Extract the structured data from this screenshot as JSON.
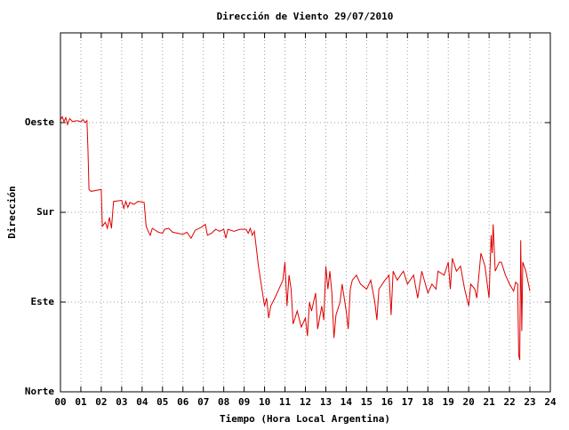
{
  "chart_data": {
    "type": "line",
    "title": "Dirección de Viento 29/07/2010",
    "xlabel": "Tiempo (Hora Local Argentina)",
    "ylabel": "Dirección",
    "color": "#dd0000",
    "grid": true,
    "xlim": [
      0,
      24
    ],
    "ylim": [
      0,
      360
    ],
    "xticks": [
      {
        "value": 0,
        "label": "00"
      },
      {
        "value": 1,
        "label": "01"
      },
      {
        "value": 2,
        "label": "02"
      },
      {
        "value": 3,
        "label": "03"
      },
      {
        "value": 4,
        "label": "04"
      },
      {
        "value": 5,
        "label": "05"
      },
      {
        "value": 6,
        "label": "06"
      },
      {
        "value": 7,
        "label": "07"
      },
      {
        "value": 8,
        "label": "08"
      },
      {
        "value": 9,
        "label": "09"
      },
      10,
      11,
      12,
      13,
      14,
      15,
      16,
      17,
      18,
      19,
      20,
      21,
      22,
      23,
      24
    ],
    "yticks": [
      {
        "value": 0,
        "label": "Norte"
      },
      {
        "value": 90,
        "label": "Este"
      },
      {
        "value": 180,
        "label": "Sur"
      },
      {
        "value": 270,
        "label": "Oeste"
      }
    ],
    "x": [
      0,
      0.09,
      0.17,
      0.26,
      0.35,
      0.45,
      0.6,
      0.8,
      1.0,
      1.1,
      1.2,
      1.3,
      1.35,
      1.4,
      1.5,
      2.0,
      2.05,
      2.2,
      2.3,
      2.4,
      2.5,
      2.6,
      3.0,
      3.1,
      3.2,
      3.3,
      3.4,
      3.6,
      3.8,
      4.1,
      4.2,
      4.3,
      4.4,
      4.5,
      4.8,
      5.0,
      5.1,
      5.3,
      5.5,
      6.0,
      6.2,
      6.4,
      6.6,
      6.9,
      7.1,
      7.2,
      7.4,
      7.6,
      7.8,
      8.0,
      8.1,
      8.2,
      8.5,
      8.8,
      9.1,
      9.2,
      9.3,
      9.4,
      9.5,
      9.7,
      9.9,
      10.0,
      10.1,
      10.2,
      10.3,
      10.5,
      10.7,
      10.9,
      11.0,
      11.1,
      11.2,
      11.3,
      11.4,
      11.6,
      11.8,
      12.0,
      12.1,
      12.2,
      12.3,
      12.5,
      12.6,
      12.8,
      12.9,
      13.0,
      13.1,
      13.2,
      13.3,
      13.4,
      13.5,
      13.7,
      13.8,
      14.0,
      14.1,
      14.2,
      14.3,
      14.5,
      14.7,
      15.0,
      15.2,
      15.4,
      15.5,
      15.6,
      15.9,
      16.1,
      16.2,
      16.3,
      16.5,
      16.8,
      17.0,
      17.3,
      17.5,
      17.7,
      18.0,
      18.2,
      18.4,
      18.5,
      18.8,
      19.0,
      19.1,
      19.2,
      19.4,
      19.6,
      19.8,
      20.0,
      20.1,
      20.3,
      20.4,
      20.6,
      20.8,
      21.0,
      21.1,
      21.15,
      21.2,
      21.3,
      21.5,
      21.6,
      21.8,
      22.0,
      22.2,
      22.3,
      22.4,
      22.45,
      22.5,
      22.55,
      22.6,
      22.65,
      22.8,
      23.0
    ],
    "values": [
      273,
      276,
      271,
      275,
      268,
      274,
      271,
      272,
      271,
      273,
      270,
      272,
      241,
      203,
      201,
      203,
      166,
      170,
      164,
      175,
      164,
      191,
      192,
      184,
      191,
      185,
      190,
      188,
      191,
      190,
      166,
      161,
      157,
      164,
      160,
      159,
      163,
      164,
      160,
      158,
      160,
      154,
      162,
      165,
      168,
      157,
      159,
      163,
      161,
      163,
      154,
      163,
      161,
      163,
      163,
      159,
      164,
      157,
      161,
      126,
      99,
      86,
      94,
      74,
      86,
      94,
      103,
      112,
      130,
      86,
      117,
      103,
      68,
      81,
      65,
      74,
      56,
      90,
      81,
      99,
      63,
      86,
      72,
      126,
      103,
      121,
      99,
      54,
      77,
      90,
      108,
      81,
      63,
      103,
      112,
      117,
      108,
      103,
      112,
      90,
      72,
      103,
      112,
      117,
      77,
      121,
      112,
      121,
      108,
      117,
      94,
      121,
      99,
      108,
      103,
      121,
      117,
      130,
      103,
      134,
      121,
      126,
      103,
      86,
      108,
      103,
      94,
      139,
      126,
      94,
      157,
      139,
      168,
      121,
      130,
      130,
      117,
      108,
      101,
      110,
      108,
      37,
      32,
      152,
      61,
      130,
      121,
      101
    ]
  }
}
